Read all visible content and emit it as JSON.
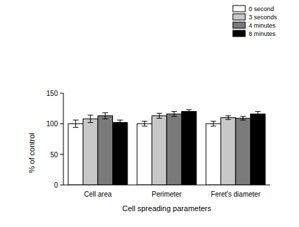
{
  "chart_data": {
    "type": "bar",
    "categories": [
      "Cell area",
      "Perimeter",
      "Feret's diameter"
    ],
    "x_label": "Cell spreading parameters",
    "y_label": "% of control",
    "series": [
      {
        "name": "0 second",
        "color": "#ffffff",
        "values": [
          100,
          100,
          100
        ],
        "errors": [
          6,
          4,
          4
        ]
      },
      {
        "name": "3 seconds",
        "color": "#c8c8c8",
        "values": [
          108,
          113,
          110
        ],
        "errors": [
          6,
          4,
          3
        ]
      },
      {
        "name": "4 minutes",
        "color": "#7a7a7a",
        "values": [
          113,
          116,
          109
        ],
        "errors": [
          5,
          4,
          3
        ]
      },
      {
        "name": "8 minutes",
        "color": "#000000",
        "values": [
          102,
          120,
          116
        ],
        "errors": [
          4,
          3,
          4
        ]
      }
    ],
    "ylim": [
      0,
      150
    ],
    "yticks": [
      0,
      50,
      100,
      150
    ],
    "grid": false,
    "legend": "upper right"
  }
}
